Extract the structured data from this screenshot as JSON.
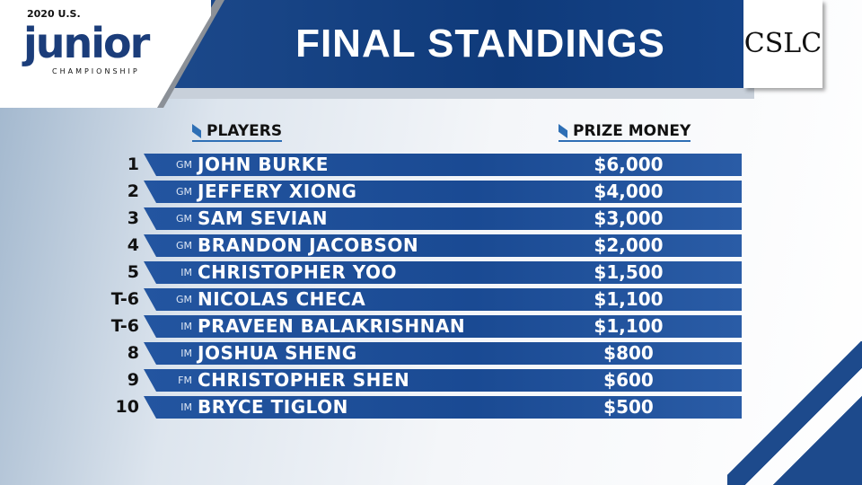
{
  "header": {
    "logo_year": "2020 U.S.",
    "logo_main": "junior",
    "logo_sub": "CHAMPIONSHIP",
    "title": "FINAL STANDINGS",
    "sponsor_logo": "CSLC"
  },
  "columns": {
    "players": "PLAYERS",
    "prize": "PRIZE MONEY"
  },
  "standings": [
    {
      "rank": "1",
      "title": "GM",
      "name": "JOHN BURKE",
      "prize": "$6,000"
    },
    {
      "rank": "2",
      "title": "GM",
      "name": "JEFFERY XIONG",
      "prize": "$4,000"
    },
    {
      "rank": "3",
      "title": "GM",
      "name": "SAM SEVIAN",
      "prize": "$3,000"
    },
    {
      "rank": "4",
      "title": "GM",
      "name": "BRANDON JACOBSON",
      "prize": "$2,000"
    },
    {
      "rank": "5",
      "title": "IM",
      "name": "CHRISTOPHER YOO",
      "prize": "$1,500"
    },
    {
      "rank": "T-6",
      "title": "GM",
      "name": "NICOLAS CHECA",
      "prize": "$1,100"
    },
    {
      "rank": "T-6",
      "title": "IM",
      "name": "PRAVEEN BALAKRISHNAN",
      "prize": "$1,100"
    },
    {
      "rank": "8",
      "title": "IM",
      "name": "JOSHUA SHENG",
      "prize": "$800"
    },
    {
      "rank": "9",
      "title": "FM",
      "name": "CHRISTOPHER SHEN",
      "prize": "$600"
    },
    {
      "rank": "10",
      "title": "IM",
      "name": "BRYCE TIGLON",
      "prize": "$500"
    }
  ],
  "colors": {
    "bar": "#1a4a93",
    "banner": "#0f3a7a",
    "accent": "#2e6fb5"
  }
}
